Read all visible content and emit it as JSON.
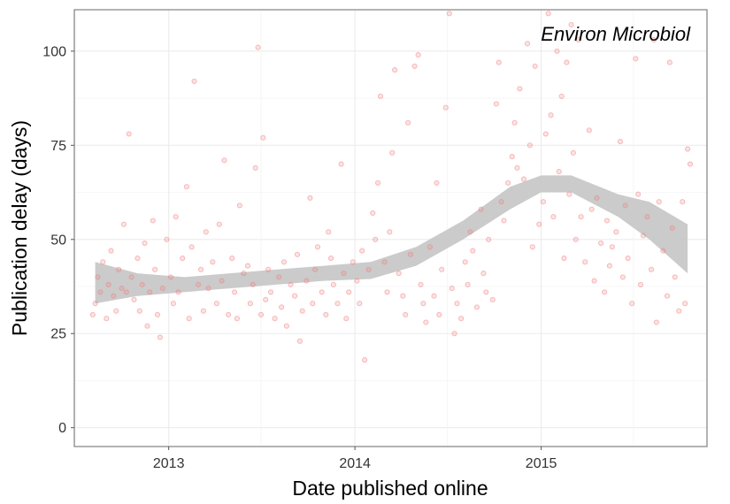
{
  "chart_data": {
    "type": "scatter",
    "title": "",
    "annotation": "Environ Microbiol",
    "xlabel": "Date published online",
    "ylabel": "Publication delay (days)",
    "x_ticks": [
      "2013",
      "2014",
      "2015"
    ],
    "y_ticks": [
      "0",
      "25",
      "50",
      "75",
      "100"
    ],
    "xlim": [
      "2012-06-30",
      "2015-11-22"
    ],
    "ylim": [
      -5,
      111
    ],
    "grid": true,
    "legend": "none",
    "point_color": "#f08080",
    "smooth_band_color": "#c8c8c8",
    "smooth_band": {
      "x": [
        "2012-08-10",
        "2012-11-01",
        "2013-02-01",
        "2013-05-01",
        "2013-08-01",
        "2013-11-01",
        "2014-02-01",
        "2014-05-01",
        "2014-08-01",
        "2014-11-01",
        "2015-01-01",
        "2015-03-01",
        "2015-06-01",
        "2015-08-01",
        "2015-10-15"
      ],
      "lower": [
        33,
        35,
        36,
        37,
        38,
        39,
        39.5,
        43,
        50,
        58,
        62.5,
        62.5,
        56,
        50,
        41
      ],
      "upper": [
        44,
        41,
        40,
        41,
        42,
        43,
        44,
        48,
        55,
        64,
        67,
        67,
        62,
        60,
        54
      ]
    },
    "points": [
      [
        "2012-08-05",
        30
      ],
      [
        "2012-08-10",
        33
      ],
      [
        "2012-08-15",
        40
      ],
      [
        "2012-08-20",
        36
      ],
      [
        "2012-08-25",
        44
      ],
      [
        "2012-09-01",
        29
      ],
      [
        "2012-09-05",
        38
      ],
      [
        "2012-09-10",
        47
      ],
      [
        "2012-09-15",
        35
      ],
      [
        "2012-09-20",
        31
      ],
      [
        "2012-09-25",
        42
      ],
      [
        "2012-10-01",
        37
      ],
      [
        "2012-10-05",
        54
      ],
      [
        "2012-10-10",
        36
      ],
      [
        "2012-10-15",
        78
      ],
      [
        "2012-10-20",
        40
      ],
      [
        "2012-10-25",
        34
      ],
      [
        "2012-11-01",
        45
      ],
      [
        "2012-11-05",
        31
      ],
      [
        "2012-11-10",
        38
      ],
      [
        "2012-11-15",
        49
      ],
      [
        "2012-11-20",
        27
      ],
      [
        "2012-11-25",
        36
      ],
      [
        "2012-12-01",
        55
      ],
      [
        "2012-12-05",
        42
      ],
      [
        "2012-12-10",
        30
      ],
      [
        "2012-12-15",
        24
      ],
      [
        "2012-12-20",
        37
      ],
      [
        "2012-12-28",
        50
      ],
      [
        "2013-01-05",
        40
      ],
      [
        "2013-01-10",
        33
      ],
      [
        "2013-01-15",
        56
      ],
      [
        "2013-01-20",
        36
      ],
      [
        "2013-01-28",
        45
      ],
      [
        "2013-02-05",
        64
      ],
      [
        "2013-02-10",
        29
      ],
      [
        "2013-02-15",
        48
      ],
      [
        "2013-02-20",
        92
      ],
      [
        "2013-02-28",
        38
      ],
      [
        "2013-03-05",
        42
      ],
      [
        "2013-03-10",
        31
      ],
      [
        "2013-03-15",
        52
      ],
      [
        "2013-03-20",
        37
      ],
      [
        "2013-03-28",
        44
      ],
      [
        "2013-04-05",
        33
      ],
      [
        "2013-04-10",
        54
      ],
      [
        "2013-04-15",
        39
      ],
      [
        "2013-04-20",
        71
      ],
      [
        "2013-04-28",
        30
      ],
      [
        "2013-05-05",
        45
      ],
      [
        "2013-05-10",
        36
      ],
      [
        "2013-05-15",
        29
      ],
      [
        "2013-05-20",
        59
      ],
      [
        "2013-05-28",
        41
      ],
      [
        "2013-06-05",
        43
      ],
      [
        "2013-06-10",
        33
      ],
      [
        "2013-06-15",
        38
      ],
      [
        "2013-06-20",
        69
      ],
      [
        "2013-06-25",
        101
      ],
      [
        "2013-07-01",
        30
      ],
      [
        "2013-07-05",
        77
      ],
      [
        "2013-07-10",
        34
      ],
      [
        "2013-07-15",
        42
      ],
      [
        "2013-07-20",
        36
      ],
      [
        "2013-07-28",
        29
      ],
      [
        "2013-08-05",
        40
      ],
      [
        "2013-08-10",
        32
      ],
      [
        "2013-08-15",
        44
      ],
      [
        "2013-08-20",
        27
      ],
      [
        "2013-08-28",
        38
      ],
      [
        "2013-09-05",
        35
      ],
      [
        "2013-09-10",
        46
      ],
      [
        "2013-09-15",
        23
      ],
      [
        "2013-09-20",
        31
      ],
      [
        "2013-09-28",
        39
      ],
      [
        "2013-10-05",
        61
      ],
      [
        "2013-10-10",
        33
      ],
      [
        "2013-10-15",
        42
      ],
      [
        "2013-10-20",
        48
      ],
      [
        "2013-10-28",
        36
      ],
      [
        "2013-11-05",
        30
      ],
      [
        "2013-11-10",
        52
      ],
      [
        "2013-11-15",
        45
      ],
      [
        "2013-11-20",
        38
      ],
      [
        "2013-11-28",
        33
      ],
      [
        "2013-12-05",
        70
      ],
      [
        "2013-12-10",
        41
      ],
      [
        "2013-12-15",
        29
      ],
      [
        "2013-12-20",
        36
      ],
      [
        "2013-12-28",
        44
      ],
      [
        "2014-01-05",
        39
      ],
      [
        "2014-01-10",
        33
      ],
      [
        "2014-01-15",
        47
      ],
      [
        "2014-01-20",
        18
      ],
      [
        "2014-01-28",
        42
      ],
      [
        "2014-02-05",
        57
      ],
      [
        "2014-02-10",
        50
      ],
      [
        "2014-02-15",
        65
      ],
      [
        "2014-02-20",
        88
      ],
      [
        "2014-02-28",
        44
      ],
      [
        "2014-03-05",
        36
      ],
      [
        "2014-03-10",
        52
      ],
      [
        "2014-03-15",
        73
      ],
      [
        "2014-03-20",
        95
      ],
      [
        "2014-03-28",
        41
      ],
      [
        "2014-04-05",
        35
      ],
      [
        "2014-04-10",
        30
      ],
      [
        "2014-04-15",
        81
      ],
      [
        "2014-04-20",
        46
      ],
      [
        "2014-04-28",
        96
      ],
      [
        "2014-05-05",
        99
      ],
      [
        "2014-05-10",
        38
      ],
      [
        "2014-05-15",
        33
      ],
      [
        "2014-05-20",
        28
      ],
      [
        "2014-05-28",
        48
      ],
      [
        "2014-06-05",
        35
      ],
      [
        "2014-06-10",
        65
      ],
      [
        "2014-06-15",
        30
      ],
      [
        "2014-06-20",
        42
      ],
      [
        "2014-06-28",
        85
      ],
      [
        "2014-07-05",
        110
      ],
      [
        "2014-07-10",
        37
      ],
      [
        "2014-07-15",
        25
      ],
      [
        "2014-07-20",
        33
      ],
      [
        "2014-07-28",
        29
      ],
      [
        "2014-08-05",
        44
      ],
      [
        "2014-08-10",
        38
      ],
      [
        "2014-08-15",
        52
      ],
      [
        "2014-08-20",
        47
      ],
      [
        "2014-08-28",
        32
      ],
      [
        "2014-09-05",
        58
      ],
      [
        "2014-09-10",
        41
      ],
      [
        "2014-09-15",
        36
      ],
      [
        "2014-09-20",
        50
      ],
      [
        "2014-09-28",
        34
      ],
      [
        "2014-10-05",
        86
      ],
      [
        "2014-10-10",
        97
      ],
      [
        "2014-10-15",
        60
      ],
      [
        "2014-10-20",
        55
      ],
      [
        "2014-10-28",
        65
      ],
      [
        "2014-11-05",
        72
      ],
      [
        "2014-11-10",
        81
      ],
      [
        "2014-11-15",
        69
      ],
      [
        "2014-11-20",
        90
      ],
      [
        "2014-11-28",
        66
      ],
      [
        "2014-12-05",
        102
      ],
      [
        "2014-12-10",
        75
      ],
      [
        "2014-12-15",
        48
      ],
      [
        "2014-12-20",
        96
      ],
      [
        "2014-12-28",
        54
      ],
      [
        "2015-01-05",
        60
      ],
      [
        "2015-01-10",
        78
      ],
      [
        "2015-01-15",
        110
      ],
      [
        "2015-01-20",
        83
      ],
      [
        "2015-01-25",
        56
      ],
      [
        "2015-02-01",
        100
      ],
      [
        "2015-02-05",
        68
      ],
      [
        "2015-02-10",
        88
      ],
      [
        "2015-02-15",
        45
      ],
      [
        "2015-02-20",
        97
      ],
      [
        "2015-02-25",
        62
      ],
      [
        "2015-03-01",
        107
      ],
      [
        "2015-03-05",
        73
      ],
      [
        "2015-03-10",
        50
      ],
      [
        "2015-03-15",
        103
      ],
      [
        "2015-03-20",
        56
      ],
      [
        "2015-03-28",
        44
      ],
      [
        "2015-04-05",
        79
      ],
      [
        "2015-04-10",
        58
      ],
      [
        "2015-04-15",
        39
      ],
      [
        "2015-04-20",
        61
      ],
      [
        "2015-04-28",
        49
      ],
      [
        "2015-05-05",
        36
      ],
      [
        "2015-05-10",
        55
      ],
      [
        "2015-05-15",
        43
      ],
      [
        "2015-05-20",
        48
      ],
      [
        "2015-05-28",
        52
      ],
      [
        "2015-06-05",
        76
      ],
      [
        "2015-06-10",
        40
      ],
      [
        "2015-06-15",
        59
      ],
      [
        "2015-06-20",
        45
      ],
      [
        "2015-06-28",
        33
      ],
      [
        "2015-07-05",
        98
      ],
      [
        "2015-07-10",
        62
      ],
      [
        "2015-07-15",
        38
      ],
      [
        "2015-07-20",
        51
      ],
      [
        "2015-07-28",
        56
      ],
      [
        "2015-08-05",
        42
      ],
      [
        "2015-08-10",
        103
      ],
      [
        "2015-08-15",
        28
      ],
      [
        "2015-08-20",
        60
      ],
      [
        "2015-08-28",
        47
      ],
      [
        "2015-09-05",
        35
      ],
      [
        "2015-09-10",
        97
      ],
      [
        "2015-09-15",
        53
      ],
      [
        "2015-09-20",
        40
      ],
      [
        "2015-09-28",
        31
      ],
      [
        "2015-10-05",
        60
      ],
      [
        "2015-10-10",
        33
      ],
      [
        "2015-10-15",
        74
      ],
      [
        "2015-10-20",
        70
      ]
    ]
  }
}
